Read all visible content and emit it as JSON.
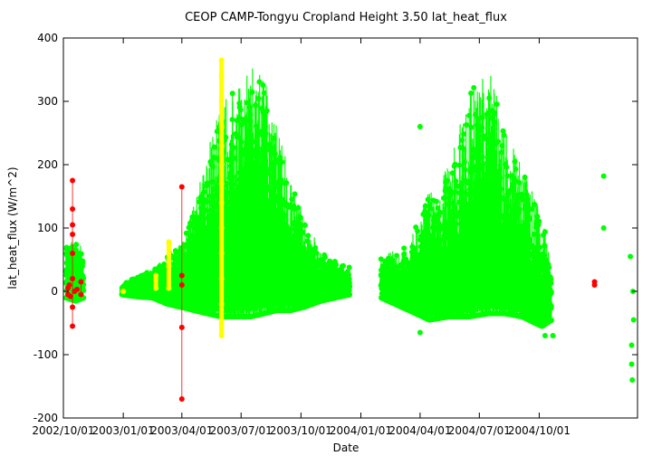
{
  "chart_data": {
    "type": "scatter",
    "title": "CEOP CAMP-Tongyu Cropland Height 3.50 lat_heat_flux",
    "xlabel": "Date",
    "ylabel": "lat_heat_flux (W/m^2)",
    "ylim": [
      -200,
      400
    ],
    "yticks": [
      -200,
      -100,
      0,
      100,
      200,
      300,
      400
    ],
    "xlim": [
      "2002-10-01",
      "2005-03-01"
    ],
    "xticks": [
      "2002/10/01",
      "2003/01/01",
      "2003/04/01",
      "2003/07/01",
      "2003/10/01",
      "2004/01/01",
      "2004/04/01",
      "2004/07/01",
      "2004/10/01"
    ],
    "grid": false,
    "legend": false,
    "colors": {
      "good": "#00ff00",
      "questionable": "#ffff00",
      "bad": "#ff0000",
      "frame": "#000000"
    },
    "series": [
      {
        "color": "#00ff00",
        "envelope": [
          {
            "date": "2002-10-05",
            "low": -10,
            "high": 85
          },
          {
            "date": "2002-10-20",
            "low": -15,
            "high": 80
          },
          {
            "date": "2002-11-01",
            "low": -10,
            "high": 70
          },
          {
            "date": "2002-12-30",
            "low": -5,
            "high": 10
          },
          {
            "date": "2003-01-20",
            "low": -8,
            "high": 25
          },
          {
            "date": "2003-02-15",
            "low": -10,
            "high": 35
          },
          {
            "date": "2003-03-10",
            "low": -20,
            "high": 60
          },
          {
            "date": "2003-04-01",
            "low": -25,
            "high": 80
          },
          {
            "date": "2003-04-20",
            "low": -30,
            "high": 140
          },
          {
            "date": "2003-05-10",
            "low": -35,
            "high": 220
          },
          {
            "date": "2003-06-01",
            "low": -40,
            "high": 300
          },
          {
            "date": "2003-06-25",
            "low": -40,
            "high": 330
          },
          {
            "date": "2003-07-15",
            "low": -40,
            "high": 355
          },
          {
            "date": "2003-08-05",
            "low": -35,
            "high": 340
          },
          {
            "date": "2003-08-25",
            "low": -30,
            "high": 270
          },
          {
            "date": "2003-09-15",
            "low": -30,
            "high": 180
          },
          {
            "date": "2003-10-05",
            "low": -25,
            "high": 120
          },
          {
            "date": "2003-11-01",
            "low": -15,
            "high": 65
          },
          {
            "date": "2003-12-15",
            "low": -5,
            "high": 40
          },
          {
            "date": "2004-02-01",
            "low": -10,
            "high": 55
          },
          {
            "date": "2004-03-15",
            "low": -30,
            "high": 75
          },
          {
            "date": "2004-04-15",
            "low": -45,
            "high": 160
          },
          {
            "date": "2004-05-15",
            "low": -40,
            "high": 200
          },
          {
            "date": "2004-06-15",
            "low": -40,
            "high": 320
          },
          {
            "date": "2004-07-15",
            "low": -35,
            "high": 355
          },
          {
            "date": "2004-08-10",
            "low": -35,
            "high": 270
          },
          {
            "date": "2004-09-05",
            "low": -40,
            "high": 200
          },
          {
            "date": "2004-10-05",
            "low": -55,
            "high": 120
          },
          {
            "date": "2004-10-20",
            "low": -45,
            "high": 50
          }
        ],
        "outliers": [
          {
            "date": "2004-04-01",
            "value": 260
          },
          {
            "date": "2004-04-01",
            "value": -65
          },
          {
            "date": "2004-10-10",
            "value": -70
          },
          {
            "date": "2004-10-22",
            "value": -70
          },
          {
            "date": "2005-01-08",
            "value": 182
          },
          {
            "date": "2005-01-08",
            "value": 100
          },
          {
            "date": "2005-02-18",
            "value": 55
          },
          {
            "date": "2005-02-20",
            "value": -85
          },
          {
            "date": "2005-02-20",
            "value": -115
          },
          {
            "date": "2005-02-21",
            "value": -140
          },
          {
            "date": "2005-02-22",
            "value": 0
          },
          {
            "date": "2005-02-23",
            "value": -45
          }
        ]
      },
      {
        "color": "#ffff00",
        "points": [
          {
            "date": "2003-01-01",
            "value": 0
          },
          {
            "date": "2003-02-20",
            "value": 25
          },
          {
            "date": "2003-02-20",
            "value": 5
          },
          {
            "date": "2003-03-12",
            "value": 78
          },
          {
            "date": "2003-03-12",
            "value": 40
          },
          {
            "date": "2003-03-12",
            "value": 5
          },
          {
            "date": "2003-06-01",
            "value": 365
          },
          {
            "date": "2003-06-01",
            "value": 340
          },
          {
            "date": "2003-06-01",
            "value": 300
          },
          {
            "date": "2003-06-01",
            "value": 260
          },
          {
            "date": "2003-06-01",
            "value": 230
          },
          {
            "date": "2003-06-01",
            "value": 200
          },
          {
            "date": "2003-06-01",
            "value": 170
          },
          {
            "date": "2003-06-01",
            "value": 140
          },
          {
            "date": "2003-06-01",
            "value": 100
          },
          {
            "date": "2003-06-01",
            "value": 60
          },
          {
            "date": "2003-06-01",
            "value": 20
          },
          {
            "date": "2003-06-01",
            "value": -20
          },
          {
            "date": "2003-06-01",
            "value": -50
          },
          {
            "date": "2003-06-01",
            "value": -70
          }
        ]
      },
      {
        "color": "#ff0000",
        "points": [
          {
            "date": "2002-10-08",
            "value": 5
          },
          {
            "date": "2002-10-08",
            "value": -5
          },
          {
            "date": "2002-10-10",
            "value": 10
          },
          {
            "date": "2002-10-12",
            "value": -8
          },
          {
            "date": "2002-10-15",
            "value": 175
          },
          {
            "date": "2002-10-15",
            "value": 130
          },
          {
            "date": "2002-10-15",
            "value": 105
          },
          {
            "date": "2002-10-15",
            "value": 90
          },
          {
            "date": "2002-10-15",
            "value": 60
          },
          {
            "date": "2002-10-15",
            "value": 20
          },
          {
            "date": "2002-10-15",
            "value": -25
          },
          {
            "date": "2002-10-15",
            "value": -55
          },
          {
            "date": "2002-10-18",
            "value": 0
          },
          {
            "date": "2002-10-22",
            "value": 3
          },
          {
            "date": "2002-10-28",
            "value": 15
          },
          {
            "date": "2002-10-28",
            "value": -5
          },
          {
            "date": "2003-04-01",
            "value": 165
          },
          {
            "date": "2003-04-01",
            "value": 25
          },
          {
            "date": "2003-04-01",
            "value": 10
          },
          {
            "date": "2003-04-01",
            "value": -57
          },
          {
            "date": "2003-04-01",
            "value": -170
          },
          {
            "date": "2004-12-25",
            "value": 15
          },
          {
            "date": "2004-12-25",
            "value": 10
          }
        ]
      }
    ]
  }
}
